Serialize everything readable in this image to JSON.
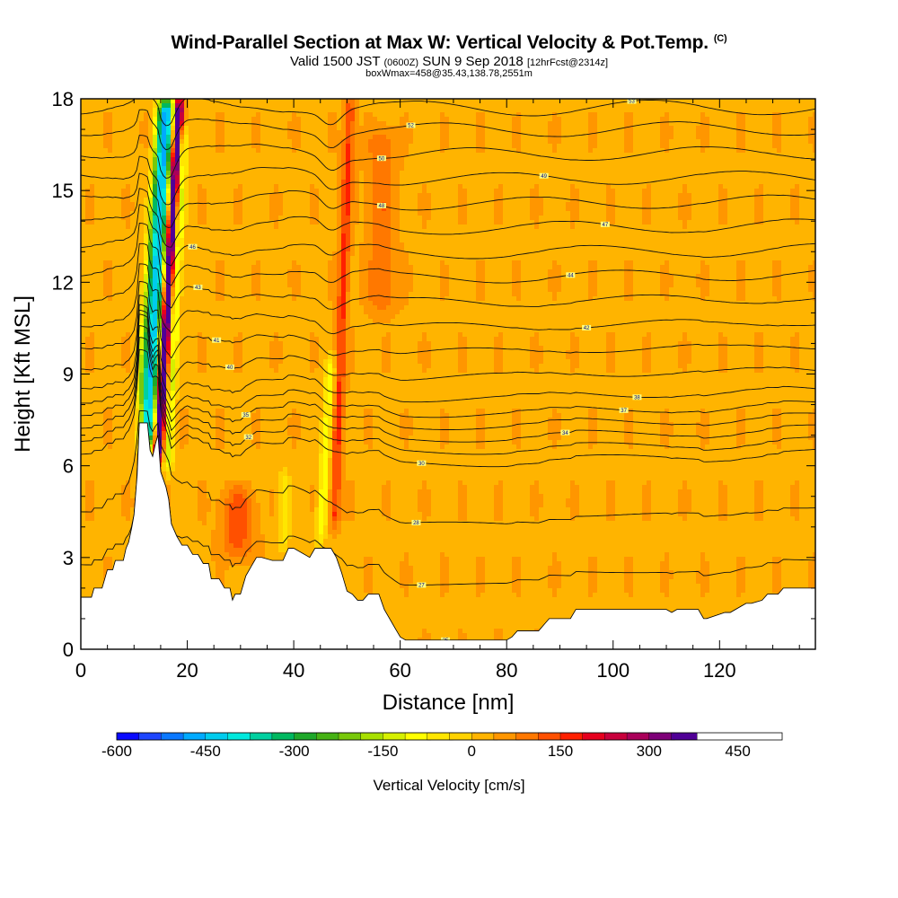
{
  "header": {
    "title": "Wind-Parallel Section at Max W: Vertical Velocity & Pot.Temp.",
    "copyright": "(C)",
    "valid_prefix": "Valid 1500 JST",
    "valid_utc": "(0600Z)",
    "valid_date": "SUN 9 Sep 2018",
    "forecast_info": "[12hrFcst@2314z]",
    "box_info": "boxWmax=458@35.43,138.78,2551m"
  },
  "chart_data": {
    "type": "heatmap",
    "xlabel": "Distance [nm]",
    "ylabel": "Height [Kft MSL]",
    "xlim": [
      0,
      138
    ],
    "ylim": [
      0,
      18
    ],
    "xticks": [
      0,
      20,
      40,
      60,
      80,
      100,
      120
    ],
    "xtick_labels": [
      "0",
      "20",
      "40",
      "60",
      "80",
      "100",
      "120"
    ],
    "yticks": [
      0,
      3,
      6,
      9,
      12,
      15,
      18
    ],
    "ytick_labels": [
      "0",
      "3",
      "6",
      "9",
      "12",
      "15",
      "18"
    ],
    "colorbar": {
      "label": "Vertical Velocity [cm/s]",
      "range": [
        -600,
        525
      ],
      "step": 37.5,
      "tick_values": [
        -600,
        -450,
        -300,
        -150,
        0,
        150,
        300,
        450
      ],
      "tick_labels": [
        "-600",
        "-450",
        "-300",
        "-150",
        "0",
        "150",
        "300",
        "450"
      ],
      "colors": [
        "#0a0aff",
        "#1e46ff",
        "#0a78ff",
        "#00aaff",
        "#00ccee",
        "#00e8dd",
        "#00d0a0",
        "#00b860",
        "#1fa82a",
        "#46b214",
        "#78c80a",
        "#a8e000",
        "#d6f000",
        "#ffff00",
        "#ffe600",
        "#ffd200",
        "#ffb400",
        "#ff9600",
        "#ff7800",
        "#ff5000",
        "#ff2000",
        "#e6001e",
        "#c8003c",
        "#aa005a",
        "#7e0078",
        "#500096"
      ]
    },
    "background_value": 30,
    "velocity_features": [
      {
        "x": 14.5,
        "w": 0.8,
        "h_from": 6.2,
        "h_to": 18,
        "lean": 4.0,
        "value": 450
      },
      {
        "x": 12.3,
        "w": 1.4,
        "h_from": 6.6,
        "h_to": 18,
        "lean": 4.0,
        "value": -470
      },
      {
        "x": 16.4,
        "w": 0.9,
        "h_from": 5.8,
        "h_to": 17,
        "lean": 3.0,
        "value": -150
      },
      {
        "x": 11.0,
        "w": 1.0,
        "h_from": 8.0,
        "h_to": 18,
        "lean": 4.0,
        "value": -120
      },
      {
        "x": 29.5,
        "w": 3.0,
        "h_from": 3.0,
        "h_to": 5.2,
        "lean": 0,
        "value": 100
      },
      {
        "x": 38.2,
        "w": 1.0,
        "h_from": 3.3,
        "h_to": 5.8,
        "lean": 0,
        "value": -100
      },
      {
        "x": 45.0,
        "w": 1.0,
        "h_from": 3.5,
        "h_to": 9.5,
        "lean": 2.0,
        "value": -130
      },
      {
        "x": 47.6,
        "w": 1.0,
        "h_from": 4.0,
        "h_to": 18,
        "lean": 3.0,
        "value": 130
      },
      {
        "x": 56.5,
        "w": 2.5,
        "h_from": 11.0,
        "h_to": 17.0,
        "lean": 0,
        "value": 75
      }
    ],
    "terrain_kft": {
      "x": [
        0,
        2,
        2.5,
        4,
        4.5,
        5,
        6,
        6.5,
        8,
        8.5,
        9,
        9.6,
        10,
        10.6,
        11,
        12.5,
        13,
        13.5,
        14,
        14.5,
        15,
        16,
        16.5,
        17,
        18,
        19,
        20,
        21,
        22,
        23,
        24,
        24.5,
        26,
        27,
        28,
        28.5,
        29,
        30,
        30.5,
        31,
        32,
        33,
        34,
        36,
        38,
        39,
        40,
        43,
        44,
        47,
        48,
        49,
        50,
        51,
        52,
        53,
        54,
        56,
        57,
        58,
        59,
        60,
        61,
        62,
        65,
        70,
        78,
        80,
        81,
        82,
        86,
        87,
        88,
        92,
        93,
        110,
        111,
        112,
        116,
        117,
        117.6,
        121,
        122,
        125,
        126,
        128,
        129,
        131,
        132,
        138
      ],
      "h": [
        1.7,
        1.7,
        2.0,
        2.0,
        2.3,
        2.6,
        2.6,
        2.9,
        2.9,
        3.3,
        3.5,
        4.0,
        4.4,
        5.7,
        7.4,
        7.4,
        6.5,
        6.3,
        6.7,
        7.0,
        5.8,
        5.3,
        4.9,
        4.1,
        3.7,
        3.4,
        3.4,
        3.1,
        3.1,
        2.8,
        2.8,
        2.3,
        2.3,
        2.0,
        2.0,
        1.6,
        1.8,
        1.8,
        2.1,
        2.4,
        2.7,
        3.0,
        3.0,
        2.9,
        2.9,
        3.3,
        3.3,
        3.0,
        3.3,
        3.3,
        3.0,
        2.5,
        1.9,
        1.8,
        1.6,
        1.6,
        1.8,
        1.8,
        1.3,
        1.0,
        0.7,
        0.4,
        0.3,
        0.3,
        0.3,
        0.3,
        0.3,
        0.3,
        0.4,
        0.6,
        0.6,
        0.8,
        1.0,
        1.0,
        1.3,
        1.3,
        1.2,
        1.3,
        1.3,
        1.0,
        1.0,
        1.2,
        1.2,
        1.5,
        1.5,
        1.6,
        1.8,
        1.8,
        2.0,
        2.0
      ]
    },
    "theta_isentropes": [
      {
        "label": "25",
        "h": 0.6,
        "lx": 68.5
      },
      {
        "label": "27",
        "h": 2.4,
        "lx": 64.0
      },
      {
        "label": "28",
        "h": 4.3,
        "lx": 63.0
      },
      {
        "label": "30",
        "h": 6.2,
        "lx": 64.0
      },
      {
        "label": "32",
        "h": 6.6,
        "lx": 31.5
      },
      {
        "label": "34",
        "h": 7.0,
        "lx": 91.0
      },
      {
        "label": "35",
        "h": 7.4,
        "lx": 31.0
      },
      {
        "label": "37",
        "h": 7.8,
        "lx": 102.0
      },
      {
        "label": "38",
        "h": 8.3,
        "lx": 104.5
      },
      {
        "label": "40",
        "h": 9.0,
        "lx": 28.0
      },
      {
        "label": "41",
        "h": 9.8,
        "lx": 25.5
      },
      {
        "label": "42",
        "h": 10.6,
        "lx": 95.0
      },
      {
        "label": "43",
        "h": 11.4,
        "lx": 22.0
      },
      {
        "label": "44",
        "h": 12.2,
        "lx": 92.0
      },
      {
        "label": "46",
        "h": 13.0,
        "lx": 21.0
      },
      {
        "label": "47",
        "h": 13.8,
        "lx": 98.5
      },
      {
        "label": "48",
        "h": 14.6,
        "lx": 56.5
      },
      {
        "label": "49",
        "h": 15.4,
        "lx": 87.0
      },
      {
        "label": "50",
        "h": 16.2,
        "lx": 56.5
      },
      {
        "label": "52",
        "h": 17.0,
        "lx": 62.0
      },
      {
        "label": "53",
        "h": 17.7,
        "lx": 103.5
      }
    ]
  }
}
